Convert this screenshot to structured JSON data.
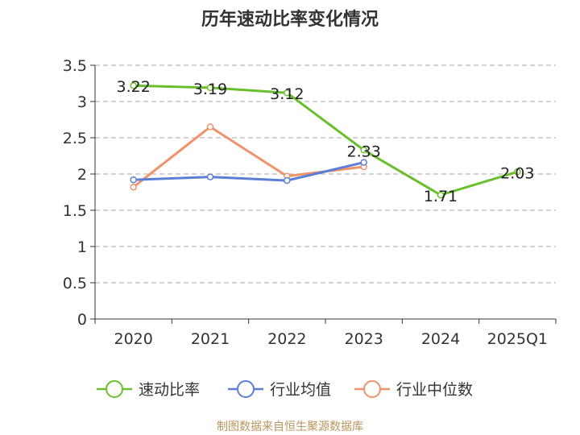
{
  "chart_data": {
    "type": "line",
    "title": "历年速动比率变化情况",
    "categories": [
      "2020",
      "2021",
      "2022",
      "2023",
      "2024",
      "2025Q1"
    ],
    "ylim": [
      0,
      3.5
    ],
    "yticks": [
      "0",
      "0.5",
      "1",
      "1.5",
      "2",
      "2.5",
      "3",
      "3.5"
    ],
    "grid": true,
    "legend_position": "bottom",
    "series": [
      {
        "name": "速动比率",
        "color": "#6abf2e",
        "values": [
          3.22,
          3.19,
          3.12,
          2.33,
          1.71,
          2.03
        ],
        "labels": [
          "3.22",
          "3.19",
          "3.12",
          "2.33",
          "1.71",
          "2.03"
        ]
      },
      {
        "name": "行业均值",
        "color": "#5b7fd6",
        "values": [
          1.92,
          1.96,
          1.91,
          2.16,
          null,
          null
        ]
      },
      {
        "name": "行业中位数",
        "color": "#f0926a",
        "values": [
          1.82,
          2.65,
          1.97,
          2.1,
          null,
          null
        ]
      }
    ]
  },
  "source": "制图数据来自恒生聚源数据库"
}
